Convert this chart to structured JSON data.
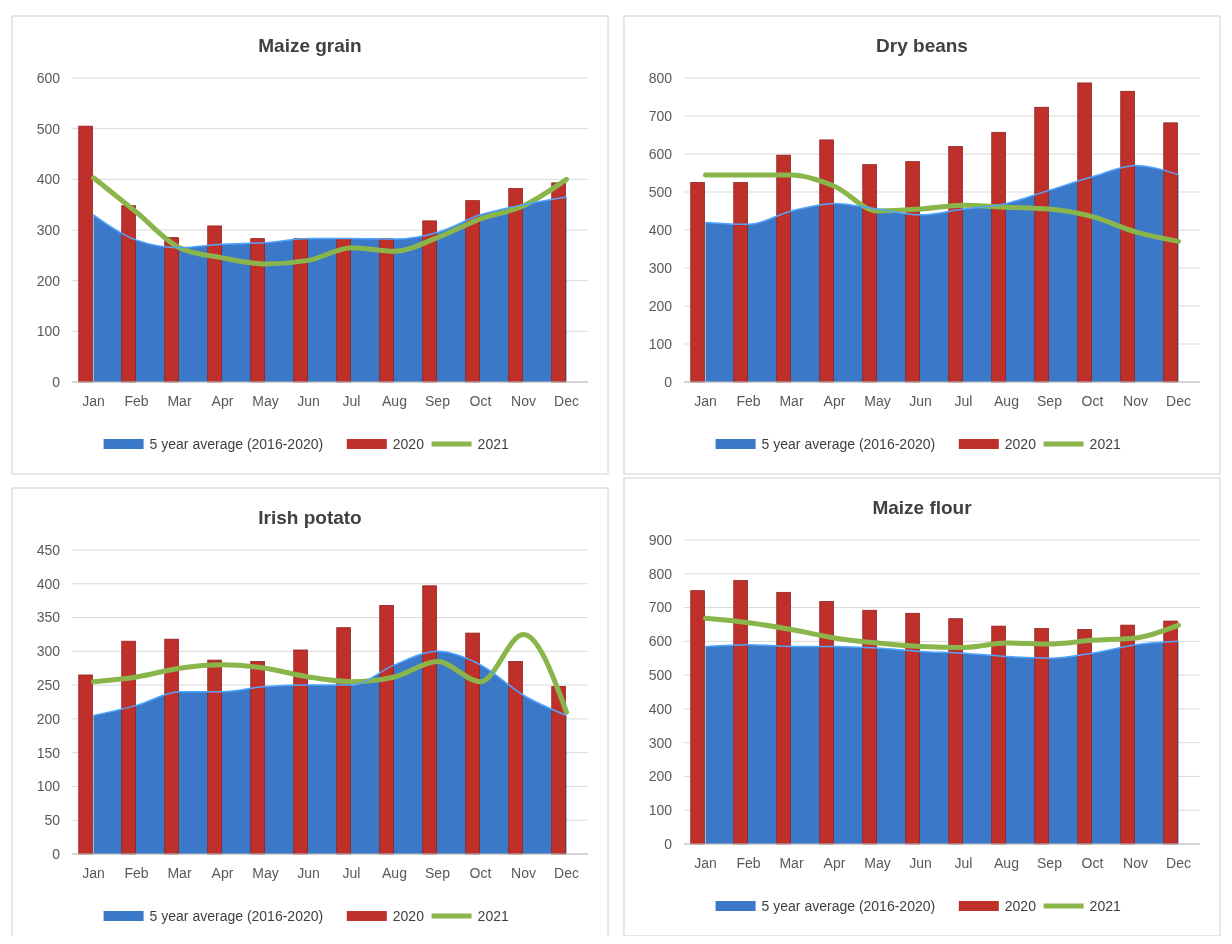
{
  "chart_data": [
    {
      "type": "bar",
      "title": "Maize grain",
      "categories": [
        "Jan",
        "Feb",
        "Mar",
        "Apr",
        "May",
        "Jun",
        "Jul",
        "Aug",
        "Sep",
        "Oct",
        "Nov",
        "Dec"
      ],
      "ylim": [
        0,
        600
      ],
      "yticks": [
        0,
        100,
        200,
        300,
        400,
        500,
        600
      ],
      "grid": "y",
      "legend": "bottom",
      "series": [
        {
          "name": "5 year average (2016-2020)",
          "type": "area",
          "color": "#3b78c8",
          "values": [
            330,
            280,
            265,
            272,
            275,
            283,
            283,
            282,
            295,
            330,
            350,
            365
          ]
        },
        {
          "name": "2020",
          "color": "#c0302a",
          "values": [
            505,
            348,
            285,
            308,
            283,
            283,
            283,
            283,
            318,
            358,
            382,
            393
          ]
        },
        {
          "name": "2021",
          "type": "line",
          "color": "#8ab54a",
          "values": [
            403,
            335,
            265,
            245,
            233,
            240,
            265,
            258,
            285,
            322,
            348,
            400
          ]
        }
      ]
    },
    {
      "type": "bar",
      "title": "Dry beans",
      "categories": [
        "Jan",
        "Feb",
        "Mar",
        "Apr",
        "May",
        "Jun",
        "Jul",
        "Aug",
        "Sep",
        "Oct",
        "Nov",
        "Dec"
      ],
      "ylim": [
        0,
        800
      ],
      "yticks": [
        0,
        100,
        200,
        300,
        400,
        500,
        600,
        700,
        800
      ],
      "grid": "y",
      "legend": "bottom",
      "series": [
        {
          "name": "5 year average (2016-2020)",
          "type": "area",
          "color": "#3b78c8",
          "values": [
            420,
            415,
            450,
            470,
            455,
            440,
            455,
            470,
            505,
            540,
            570,
            545
          ]
        },
        {
          "name": "2020",
          "color": "#c0302a",
          "values": [
            525,
            525,
            597,
            637,
            572,
            580,
            620,
            657,
            723,
            787,
            765,
            682
          ]
        },
        {
          "name": "2021",
          "type": "line",
          "color": "#8ab54a",
          "values": [
            545,
            545,
            545,
            515,
            450,
            455,
            465,
            460,
            455,
            435,
            395,
            370
          ]
        }
      ]
    },
    {
      "type": "bar",
      "title": "Irish potato",
      "categories": [
        "Jan",
        "Feb",
        "Mar",
        "Apr",
        "May",
        "Jun",
        "Jul",
        "Aug",
        "Sep",
        "Oct",
        "Nov",
        "Dec"
      ],
      "ylim": [
        0,
        450
      ],
      "yticks": [
        0,
        50,
        100,
        150,
        200,
        250,
        300,
        350,
        400,
        450
      ],
      "grid": "y",
      "legend": "bottom",
      "series": [
        {
          "name": "5 year average (2016-2020)",
          "type": "area",
          "color": "#3b78c8",
          "values": [
            205,
            220,
            240,
            240,
            248,
            250,
            250,
            280,
            300,
            280,
            235,
            205
          ]
        },
        {
          "name": "2020",
          "color": "#c0302a",
          "values": [
            265,
            315,
            318,
            287,
            285,
            302,
            335,
            368,
            397,
            327,
            285,
            248
          ]
        },
        {
          "name": "2021",
          "type": "line",
          "color": "#8ab54a",
          "values": [
            255,
            262,
            275,
            280,
            275,
            262,
            255,
            262,
            285,
            255,
            325,
            210
          ]
        }
      ]
    },
    {
      "type": "bar",
      "title": "Maize flour",
      "categories": [
        "Jan",
        "Feb",
        "Mar",
        "Apr",
        "May",
        "Jun",
        "Jul",
        "Aug",
        "Sep",
        "Oct",
        "Nov",
        "Dec"
      ],
      "ylim": [
        0,
        900
      ],
      "yticks": [
        0,
        100,
        200,
        300,
        400,
        500,
        600,
        700,
        800,
        900
      ],
      "grid": "y",
      "legend": "bottom",
      "series": [
        {
          "name": "5 year average (2016-2020)",
          "type": "area",
          "color": "#3b78c8",
          "values": [
            585,
            590,
            585,
            585,
            580,
            570,
            565,
            555,
            550,
            565,
            590,
            600
          ]
        },
        {
          "name": "2020",
          "color": "#c0302a",
          "values": [
            750,
            780,
            745,
            718,
            692,
            683,
            667,
            645,
            638,
            635,
            648,
            660
          ]
        },
        {
          "name": "2021",
          "type": "line",
          "color": "#8ab54a",
          "values": [
            668,
            655,
            635,
            610,
            595,
            585,
            582,
            595,
            592,
            603,
            610,
            648
          ]
        }
      ]
    }
  ]
}
